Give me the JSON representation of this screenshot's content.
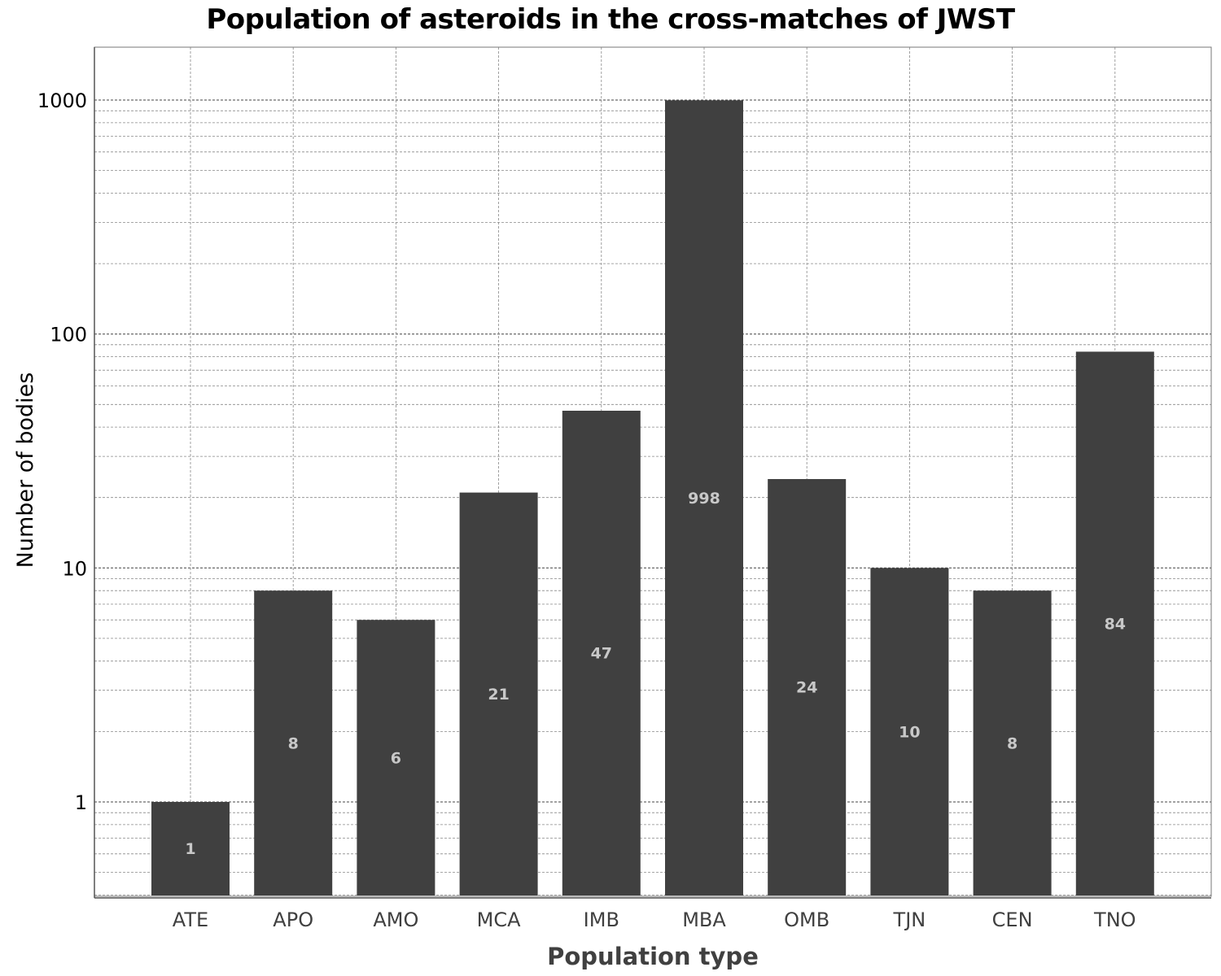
{
  "chart_data": {
    "type": "bar",
    "title": "Population of asteroids in the cross-matches of JWST",
    "xlabel": "Population type",
    "ylabel": "Number of bodies",
    "yscale": "log",
    "ylim": [
      0.4,
      1700
    ],
    "yticks": [
      1,
      10,
      100,
      1000
    ],
    "ytick_labels": [
      "1",
      "10",
      "100",
      "1000"
    ],
    "grid": true,
    "categories": [
      "ATE",
      "APO",
      "AMO",
      "MCA",
      "IMB",
      "MBA",
      "OMB",
      "TJN",
      "CEN",
      "TNO"
    ],
    "values": [
      1,
      8,
      6,
      21,
      47,
      998,
      24,
      10,
      8,
      84
    ],
    "data_labels": [
      "1",
      "8",
      "6",
      "21",
      "47",
      "998",
      "24",
      "10",
      "8",
      "84"
    ],
    "colors": {
      "bar": "#404040",
      "bar_label": "#c8c8c8",
      "grid": "#888888",
      "axis": "#555555",
      "xtick_text": "#404040",
      "xlabel_text": "#404040",
      "ytick_text": "#000000",
      "ylabel_text": "#000000"
    }
  }
}
